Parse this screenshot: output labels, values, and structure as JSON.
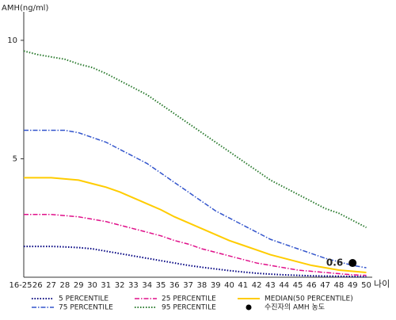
{
  "chart_data": {
    "type": "line",
    "y_label": "AMH(ng/ml)",
    "x_label": "나이",
    "categories": [
      "16-25",
      "26",
      "27",
      "28",
      "29",
      "30",
      "31",
      "32",
      "33",
      "34",
      "35",
      "36",
      "37",
      "38",
      "39",
      "40",
      "41",
      "42",
      "43",
      "44",
      "45",
      "46",
      "47",
      "48",
      "49",
      "50"
    ],
    "ylim": [
      0,
      11.2
    ],
    "yticks": [
      5,
      10
    ],
    "series": [
      {
        "name": "5 PERCENTILE",
        "color": "#000080",
        "style": "dotted",
        "values": [
          1.3,
          1.3,
          1.3,
          1.28,
          1.25,
          1.2,
          1.1,
          1.0,
          0.9,
          0.8,
          0.7,
          0.6,
          0.5,
          0.42,
          0.35,
          0.28,
          0.22,
          0.17,
          0.13,
          0.1,
          0.08,
          0.06,
          0.05,
          0.04,
          0.03,
          0.02
        ]
      },
      {
        "name": "75 PERCENTILE",
        "color": "#3355cc",
        "style": "dashdot",
        "values": [
          6.2,
          6.2,
          6.2,
          6.2,
          6.1,
          5.9,
          5.7,
          5.4,
          5.1,
          4.8,
          4.4,
          4.0,
          3.6,
          3.2,
          2.8,
          2.5,
          2.2,
          1.9,
          1.6,
          1.4,
          1.2,
          1.0,
          0.8,
          0.65,
          0.5,
          0.4
        ]
      },
      {
        "name": "25 PERCENTILE",
        "color": "#e0108a",
        "style": "dashdot",
        "values": [
          2.65,
          2.65,
          2.65,
          2.6,
          2.55,
          2.45,
          2.35,
          2.2,
          2.05,
          1.9,
          1.75,
          1.55,
          1.4,
          1.2,
          1.05,
          0.9,
          0.75,
          0.6,
          0.5,
          0.4,
          0.3,
          0.25,
          0.2,
          0.15,
          0.1,
          0.08
        ]
      },
      {
        "name": "95 PERCENTILE",
        "color": "#2e7d32",
        "style": "dotted",
        "values": [
          9.55,
          9.4,
          9.3,
          9.2,
          9.0,
          8.85,
          8.6,
          8.3,
          8.0,
          7.7,
          7.3,
          6.9,
          6.5,
          6.1,
          5.7,
          5.3,
          4.9,
          4.5,
          4.1,
          3.8,
          3.5,
          3.2,
          2.9,
          2.7,
          2.4,
          2.1
        ]
      },
      {
        "name": "MEDIAN(50 PERCENTILE)",
        "color": "#ffcc00",
        "style": "solid",
        "values": [
          4.2,
          4.2,
          4.2,
          4.15,
          4.1,
          3.95,
          3.8,
          3.6,
          3.35,
          3.1,
          2.85,
          2.55,
          2.3,
          2.05,
          1.8,
          1.55,
          1.35,
          1.15,
          0.95,
          0.8,
          0.65,
          0.5,
          0.4,
          0.3,
          0.25,
          0.2
        ]
      }
    ],
    "patient": {
      "name": "수진자의 AMH 농도",
      "color": "#000000",
      "x": "49",
      "value": 0.6
    }
  }
}
